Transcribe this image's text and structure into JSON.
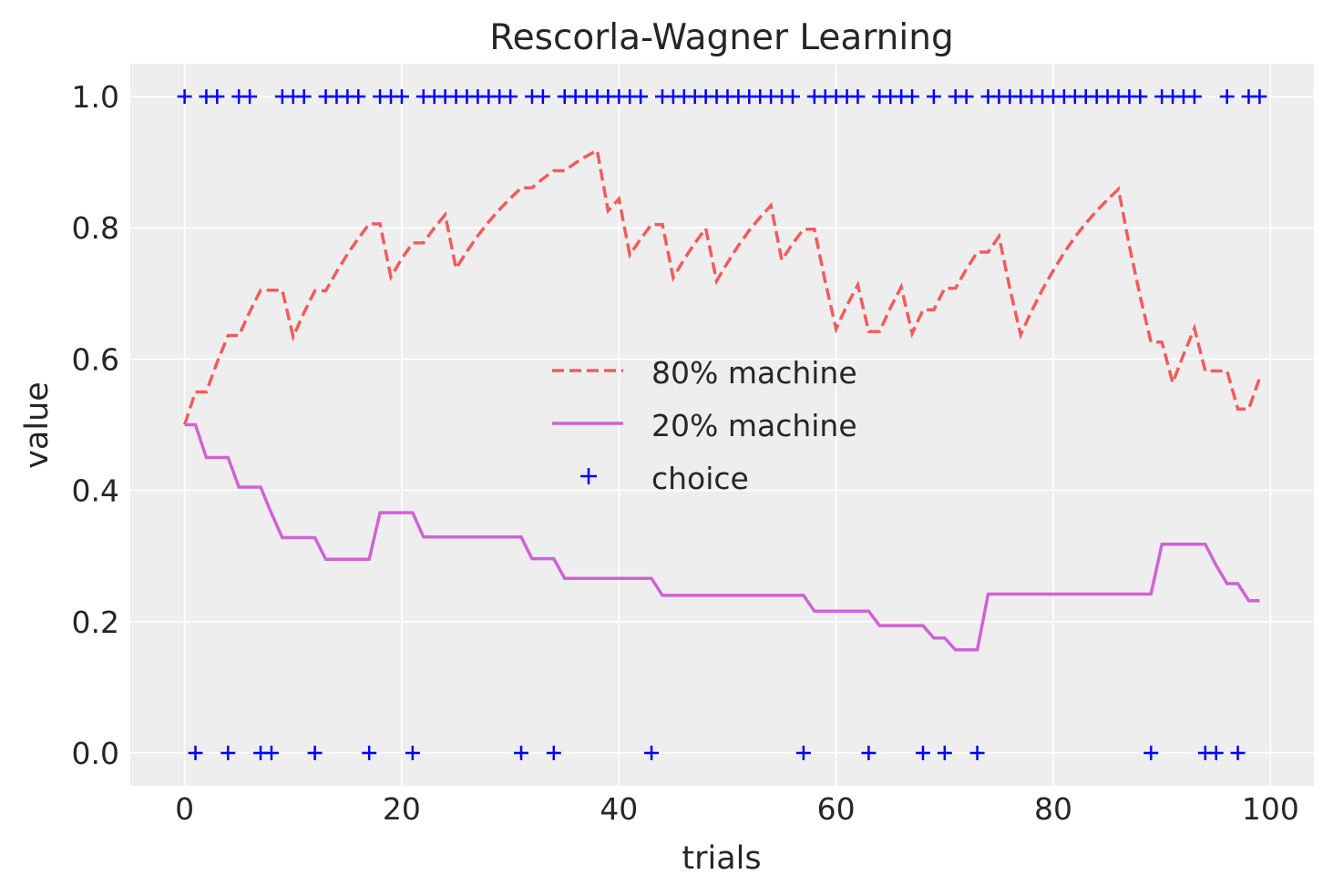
{
  "chart_data": {
    "type": "line",
    "title": "Rescorla-Wagner Learning",
    "xlabel": "trials",
    "ylabel": "value",
    "xlim": [
      -5,
      104
    ],
    "ylim": [
      -0.05,
      1.05
    ],
    "xticks": [
      0,
      20,
      40,
      60,
      80,
      100
    ],
    "yticks": [
      0.0,
      0.2,
      0.4,
      0.6,
      0.8,
      1.0
    ],
    "xtick_labels": [
      "0",
      "20",
      "40",
      "60",
      "80",
      "100"
    ],
    "ytick_labels": [
      "0.0",
      "0.2",
      "0.4",
      "0.6",
      "0.8",
      "1.0"
    ],
    "grid": true,
    "legend_position": "center",
    "x": [
      0,
      1,
      2,
      3,
      4,
      5,
      6,
      7,
      8,
      9,
      10,
      11,
      12,
      13,
      14,
      15,
      16,
      17,
      18,
      19,
      20,
      21,
      22,
      23,
      24,
      25,
      26,
      27,
      28,
      29,
      30,
      31,
      32,
      33,
      34,
      35,
      36,
      37,
      38,
      39,
      40,
      41,
      42,
      43,
      44,
      45,
      46,
      47,
      48,
      49,
      50,
      51,
      52,
      53,
      54,
      55,
      56,
      57,
      58,
      59,
      60,
      61,
      62,
      63,
      64,
      65,
      66,
      67,
      68,
      69,
      70,
      71,
      72,
      73,
      74,
      75,
      76,
      77,
      78,
      79,
      80,
      81,
      82,
      83,
      84,
      85,
      86,
      87,
      88,
      89,
      90,
      91,
      92,
      93,
      94,
      95,
      96,
      97,
      98,
      99
    ],
    "series": [
      {
        "name": "80% machine",
        "style": "dashed",
        "color": "#f25c5c",
        "values": [
          0.5,
          0.55,
          0.55,
          0.595,
          0.636,
          0.636,
          0.672,
          0.705,
          0.705,
          0.705,
          0.634,
          0.671,
          0.704,
          0.704,
          0.733,
          0.76,
          0.784,
          0.806,
          0.806,
          0.725,
          0.753,
          0.777,
          0.777,
          0.8,
          0.82,
          0.738,
          0.764,
          0.788,
          0.809,
          0.828,
          0.845,
          0.861,
          0.861,
          0.875,
          0.887,
          0.887,
          0.899,
          0.909,
          0.918,
          0.826,
          0.844,
          0.759,
          0.783,
          0.805,
          0.805,
          0.724,
          0.752,
          0.777,
          0.799,
          0.719,
          0.747,
          0.773,
          0.796,
          0.816,
          0.834,
          0.751,
          0.776,
          0.798,
          0.798,
          0.718,
          0.646,
          0.682,
          0.713,
          0.642,
          0.642,
          0.678,
          0.71,
          0.639,
          0.675,
          0.675,
          0.708,
          0.708,
          0.737,
          0.763,
          0.763,
          0.787,
          0.708,
          0.637,
          0.673,
          0.706,
          0.735,
          0.762,
          0.786,
          0.807,
          0.826,
          0.843,
          0.859,
          0.773,
          0.696,
          0.626,
          0.626,
          0.564,
          0.607,
          0.647,
          0.582,
          0.582,
          0.582,
          0.524,
          0.524,
          0.571
        ]
      },
      {
        "name": "20% machine",
        "style": "solid",
        "color": "#d062d6",
        "values": [
          0.5,
          0.5,
          0.45,
          0.45,
          0.45,
          0.405,
          0.405,
          0.405,
          0.365,
          0.328,
          0.328,
          0.328,
          0.328,
          0.295,
          0.295,
          0.295,
          0.295,
          0.295,
          0.366,
          0.366,
          0.366,
          0.366,
          0.329,
          0.329,
          0.329,
          0.329,
          0.329,
          0.329,
          0.329,
          0.329,
          0.329,
          0.329,
          0.296,
          0.296,
          0.296,
          0.266,
          0.266,
          0.266,
          0.266,
          0.266,
          0.266,
          0.266,
          0.266,
          0.266,
          0.24,
          0.24,
          0.24,
          0.24,
          0.24,
          0.24,
          0.24,
          0.24,
          0.24,
          0.24,
          0.24,
          0.24,
          0.24,
          0.24,
          0.216,
          0.216,
          0.216,
          0.216,
          0.216,
          0.216,
          0.194,
          0.194,
          0.194,
          0.194,
          0.194,
          0.175,
          0.175,
          0.157,
          0.157,
          0.157,
          0.242,
          0.242,
          0.242,
          0.242,
          0.242,
          0.242,
          0.242,
          0.242,
          0.242,
          0.242,
          0.242,
          0.242,
          0.242,
          0.242,
          0.242,
          0.242,
          0.318,
          0.318,
          0.318,
          0.318,
          0.318,
          0.286,
          0.258,
          0.258,
          0.232,
          0.232
        ]
      },
      {
        "name": "choice",
        "style": "markers",
        "marker": "+",
        "color": "#0000ff",
        "values": [
          1,
          0,
          1,
          1,
          0,
          1,
          1,
          0,
          0,
          1,
          1,
          1,
          0,
          1,
          1,
          1,
          1,
          0,
          1,
          1,
          1,
          0,
          1,
          1,
          1,
          1,
          1,
          1,
          1,
          1,
          1,
          0,
          1,
          1,
          0,
          1,
          1,
          1,
          1,
          1,
          1,
          1,
          1,
          0,
          1,
          1,
          1,
          1,
          1,
          1,
          1,
          1,
          1,
          1,
          1,
          1,
          1,
          0,
          1,
          1,
          1,
          1,
          1,
          0,
          1,
          1,
          1,
          1,
          0,
          1,
          0,
          1,
          1,
          0,
          1,
          1,
          1,
          1,
          1,
          1,
          1,
          1,
          1,
          1,
          1,
          1,
          1,
          1,
          1,
          0,
          1,
          1,
          1,
          1,
          0,
          0,
          1,
          0,
          1,
          1
        ]
      }
    ]
  }
}
